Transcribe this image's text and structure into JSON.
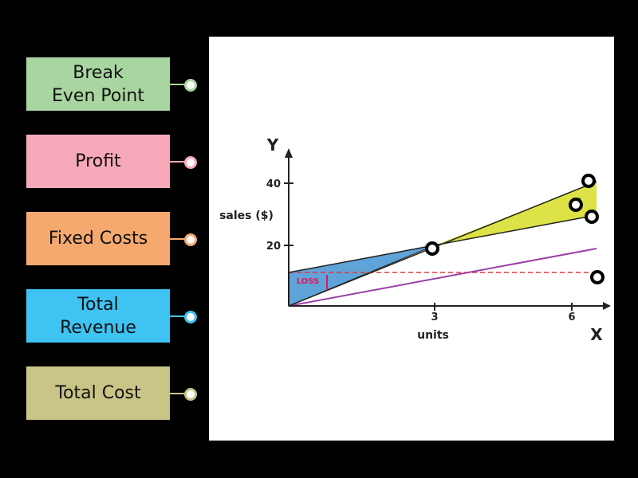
{
  "labels": [
    "Break\nEven Point",
    "Profit",
    "Fixed Costs",
    "Total\nRevenue",
    "Total Cost"
  ],
  "diagram": {
    "y_axis": "Y",
    "x_axis": "X",
    "y_title": "sales ($)",
    "x_title": "units",
    "yticks": [
      "40",
      "20"
    ],
    "xticks": [
      "3",
      "6"
    ],
    "loss": "LOSS"
  }
}
